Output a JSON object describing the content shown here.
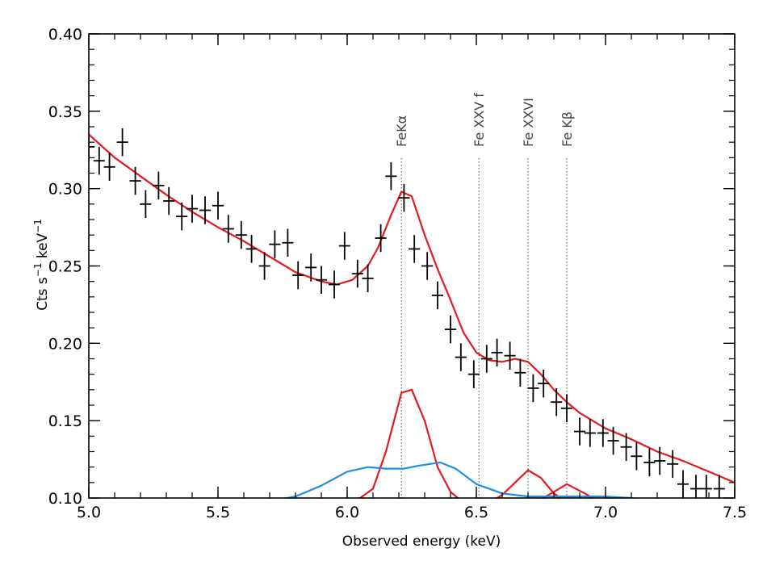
{
  "chart_data": {
    "type": "line",
    "title": "",
    "xlabel": "Observed energy (keV)",
    "ylabel_parts": {
      "base": "Cts s",
      "exp1": "−1",
      "mid": " keV",
      "exp2": "−1"
    },
    "xlim": [
      5.0,
      7.5
    ],
    "ylim": [
      0.1,
      0.4
    ],
    "xticks": [
      5.0,
      5.5,
      6.0,
      6.5,
      7.0,
      7.5
    ],
    "xtick_labels": [
      "5.0",
      "5.5",
      "6.0",
      "6.5",
      "7.0",
      "7.5"
    ],
    "yticks": [
      0.1,
      0.15,
      0.2,
      0.25,
      0.3,
      0.35,
      0.4
    ],
    "ytick_labels": [
      "0.10",
      "0.15",
      "0.20",
      "0.25",
      "0.30",
      "0.35",
      "0.40"
    ],
    "grid": false,
    "colors": {
      "data": "#000000",
      "model": "#e41a1c",
      "component_blue": "#1f8fe6",
      "guide": "#444444"
    },
    "line_markers": [
      {
        "label": "FeKα",
        "x": 6.21
      },
      {
        "label": "Fe XXV f",
        "x": 6.51
      },
      {
        "label": "Fe XXVI",
        "x": 6.7
      },
      {
        "label": "Fe Kβ",
        "x": 6.85
      }
    ],
    "data_points": {
      "x": [
        5.0,
        5.04,
        5.08,
        5.13,
        5.18,
        5.22,
        5.27,
        5.31,
        5.36,
        5.4,
        5.45,
        5.5,
        5.54,
        5.59,
        5.63,
        5.68,
        5.72,
        5.77,
        5.81,
        5.86,
        5.9,
        5.95,
        5.99,
        6.04,
        6.08,
        6.13,
        6.17,
        6.22,
        6.26,
        6.31,
        6.35,
        6.4,
        6.44,
        6.49,
        6.54,
        6.58,
        6.63,
        6.67,
        6.72,
        6.76,
        6.81,
        6.85,
        6.9,
        6.94,
        6.99,
        7.03,
        7.08,
        7.12,
        7.17,
        7.21,
        7.26,
        7.3,
        7.35,
        7.39,
        7.44
      ],
      "y": [
        0.327,
        0.318,
        0.314,
        0.33,
        0.305,
        0.29,
        0.302,
        0.292,
        0.282,
        0.287,
        0.286,
        0.289,
        0.274,
        0.27,
        0.261,
        0.25,
        0.264,
        0.265,
        0.244,
        0.249,
        0.241,
        0.238,
        0.263,
        0.245,
        0.242,
        0.268,
        0.308,
        0.294,
        0.261,
        0.25,
        0.231,
        0.209,
        0.191,
        0.18,
        0.19,
        0.194,
        0.192,
        0.181,
        0.171,
        0.174,
        0.162,
        0.158,
        0.143,
        0.142,
        0.142,
        0.137,
        0.133,
        0.127,
        0.123,
        0.124,
        0.122,
        0.109,
        0.106,
        0.106,
        0.106
      ],
      "yerr": 0.009,
      "xerr": 0.022
    },
    "series": [
      {
        "role": "total-model",
        "color": "#e41a1c",
        "x": [
          5.0,
          5.1,
          5.2,
          5.3,
          5.4,
          5.5,
          5.6,
          5.7,
          5.8,
          5.9,
          5.96,
          6.02,
          6.08,
          6.12,
          6.17,
          6.21,
          6.25,
          6.3,
          6.35,
          6.4,
          6.45,
          6.5,
          6.55,
          6.6,
          6.65,
          6.7,
          6.75,
          6.8,
          6.85,
          6.9,
          7.0,
          7.1,
          7.2,
          7.3,
          7.4,
          7.5
        ],
        "y": [
          0.335,
          0.32,
          0.308,
          0.296,
          0.285,
          0.275,
          0.266,
          0.256,
          0.246,
          0.24,
          0.238,
          0.241,
          0.25,
          0.262,
          0.283,
          0.298,
          0.295,
          0.27,
          0.248,
          0.228,
          0.207,
          0.194,
          0.189,
          0.188,
          0.19,
          0.188,
          0.18,
          0.17,
          0.162,
          0.155,
          0.145,
          0.138,
          0.13,
          0.124,
          0.117,
          0.11
        ]
      },
      {
        "role": "FeKα-component",
        "color": "#e41a1c",
        "x": [
          5.0,
          6.0,
          6.05,
          6.1,
          6.15,
          6.21,
          6.25,
          6.3,
          6.35,
          6.4,
          6.45,
          7.5
        ],
        "y": [
          0.097,
          0.097,
          0.1,
          0.106,
          0.13,
          0.168,
          0.17,
          0.15,
          0.12,
          0.104,
          0.097,
          0.097
        ]
      },
      {
        "role": "Fe XXVI-component",
        "color": "#e41a1c",
        "x": [
          5.0,
          6.55,
          6.6,
          6.65,
          6.7,
          6.75,
          6.8,
          6.85,
          7.5
        ],
        "y": [
          0.097,
          0.097,
          0.102,
          0.11,
          0.118,
          0.113,
          0.103,
          0.097,
          0.097
        ]
      },
      {
        "role": "Fe Kβ-component",
        "color": "#e41a1c",
        "x": [
          5.0,
          6.72,
          6.78,
          6.85,
          6.92,
          6.98,
          7.5
        ],
        "y": [
          0.097,
          0.097,
          0.102,
          0.109,
          0.103,
          0.097,
          0.097
        ]
      },
      {
        "role": "broad-component",
        "color": "#1f8fe6",
        "x": [
          5.0,
          5.6,
          5.7,
          5.8,
          5.9,
          6.0,
          6.08,
          6.15,
          6.22,
          6.28,
          6.36,
          6.42,
          6.5,
          6.6,
          6.7,
          6.85,
          7.0,
          7.1,
          7.2,
          7.5
        ],
        "y": [
          0.097,
          0.097,
          0.098,
          0.101,
          0.108,
          0.117,
          0.12,
          0.119,
          0.119,
          0.121,
          0.123,
          0.119,
          0.109,
          0.103,
          0.101,
          0.101,
          0.101,
          0.1,
          0.098,
          0.097
        ]
      }
    ]
  }
}
